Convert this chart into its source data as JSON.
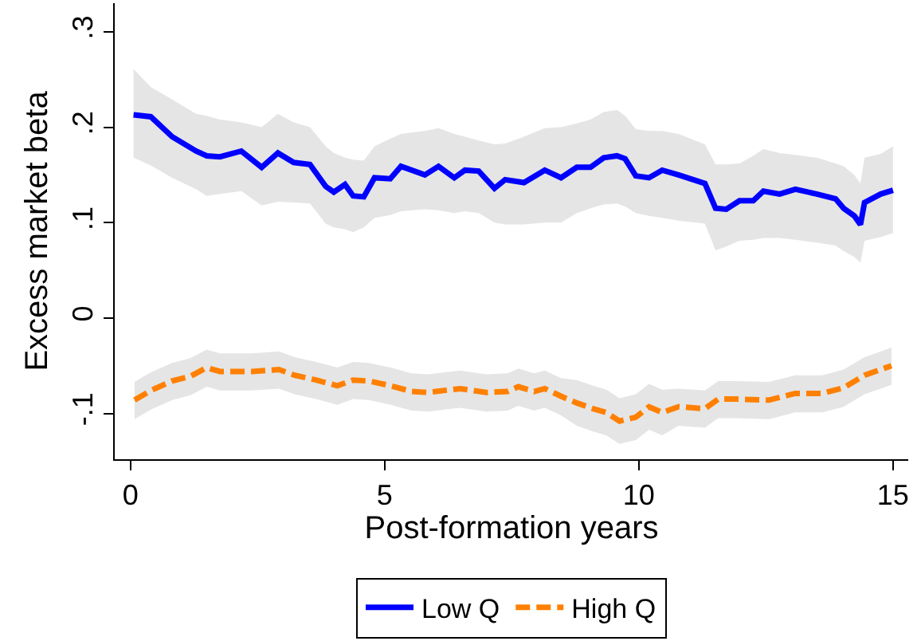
{
  "chart_data": {
    "type": "line",
    "xlabel": "Post-formation years",
    "ylabel": "Excess market beta",
    "xlim": [
      -0.31,
      15.3
    ],
    "xticks": [
      0,
      5,
      10,
      15
    ],
    "ylim": [
      -0.148,
      0.33
    ],
    "yticks": [
      {
        "value": 0.3,
        "label": ".3"
      },
      {
        "value": 0.2,
        "label": ".2"
      },
      {
        "value": 0.1,
        "label": ".1"
      },
      0,
      {
        "value": -0.1,
        "label": "-.1"
      }
    ],
    "grid": false,
    "legend": "bottom",
    "marker": "none",
    "series": [
      {
        "name": "Low Q",
        "color": "#0000ff",
        "line_style": "solid",
        "x": [
          0.06,
          0.4,
          0.82,
          1.29,
          1.5,
          1.76,
          2.18,
          2.58,
          2.9,
          3.21,
          3.53,
          3.84,
          4.0,
          4.22,
          4.38,
          4.59,
          4.8,
          5.11,
          5.32,
          5.79,
          6.06,
          6.37,
          6.58,
          6.85,
          7.16,
          7.37,
          7.74,
          8.15,
          8.47,
          8.78,
          9.05,
          9.31,
          9.57,
          9.73,
          9.94,
          10.2,
          10.46,
          10.78,
          11.3,
          11.51,
          11.72,
          11.98,
          12.25,
          12.45,
          12.77,
          13.08,
          13.5,
          13.87,
          14.03,
          14.24,
          14.36,
          14.44,
          14.76,
          15.0
        ],
        "values": [
          0.213,
          0.211,
          0.19,
          0.175,
          0.17,
          0.169,
          0.175,
          0.158,
          0.173,
          0.163,
          0.161,
          0.138,
          0.132,
          0.14,
          0.128,
          0.127,
          0.147,
          0.146,
          0.159,
          0.15,
          0.159,
          0.147,
          0.155,
          0.154,
          0.136,
          0.145,
          0.142,
          0.155,
          0.147,
          0.158,
          0.158,
          0.168,
          0.17,
          0.167,
          0.149,
          0.147,
          0.155,
          0.15,
          0.141,
          0.115,
          0.114,
          0.123,
          0.123,
          0.133,
          0.13,
          0.135,
          0.13,
          0.125,
          0.115,
          0.107,
          0.098,
          0.121,
          0.13,
          0.134
        ],
        "upper": [
          0.261,
          0.242,
          0.229,
          0.214,
          0.212,
          0.208,
          0.205,
          0.2,
          0.214,
          0.205,
          0.2,
          0.18,
          0.173,
          0.168,
          0.166,
          0.165,
          0.18,
          0.188,
          0.193,
          0.196,
          0.199,
          0.193,
          0.19,
          0.186,
          0.182,
          0.183,
          0.19,
          0.199,
          0.2,
          0.204,
          0.208,
          0.216,
          0.218,
          0.212,
          0.198,
          0.196,
          0.196,
          0.193,
          0.182,
          0.161,
          0.161,
          0.162,
          0.17,
          0.177,
          0.173,
          0.171,
          0.168,
          0.162,
          0.159,
          0.15,
          0.141,
          0.168,
          0.172,
          0.18
        ],
        "lower": [
          0.168,
          0.16,
          0.147,
          0.135,
          0.128,
          0.13,
          0.133,
          0.118,
          0.122,
          0.121,
          0.12,
          0.099,
          0.095,
          0.093,
          0.09,
          0.095,
          0.105,
          0.108,
          0.112,
          0.114,
          0.113,
          0.11,
          0.112,
          0.11,
          0.1,
          0.098,
          0.098,
          0.1,
          0.1,
          0.11,
          0.115,
          0.119,
          0.12,
          0.117,
          0.11,
          0.107,
          0.105,
          0.102,
          0.099,
          0.071,
          0.075,
          0.081,
          0.082,
          0.084,
          0.084,
          0.082,
          0.079,
          0.076,
          0.07,
          0.064,
          0.058,
          0.081,
          0.085,
          0.089
        ]
      },
      {
        "name": "High Q",
        "color": "#ff8000",
        "line_style": "dashed",
        "x": [
          0.08,
          0.4,
          0.82,
          1.18,
          1.5,
          1.76,
          2.08,
          2.39,
          2.92,
          3.23,
          3.65,
          4.07,
          4.38,
          4.69,
          5.12,
          5.53,
          5.85,
          6.48,
          7.0,
          7.42,
          7.63,
          7.94,
          8.15,
          8.47,
          8.78,
          9.1,
          9.36,
          9.62,
          9.94,
          10.2,
          10.46,
          10.78,
          11.3,
          11.56,
          11.93,
          12.56,
          13.08,
          13.61,
          14.03,
          14.44,
          14.97
        ],
        "values": [
          -0.086,
          -0.076,
          -0.066,
          -0.061,
          -0.052,
          -0.056,
          -0.056,
          -0.056,
          -0.054,
          -0.06,
          -0.065,
          -0.071,
          -0.065,
          -0.066,
          -0.071,
          -0.077,
          -0.078,
          -0.074,
          -0.078,
          -0.077,
          -0.072,
          -0.077,
          -0.074,
          -0.082,
          -0.089,
          -0.095,
          -0.099,
          -0.108,
          -0.104,
          -0.093,
          -0.099,
          -0.093,
          -0.095,
          -0.085,
          -0.085,
          -0.086,
          -0.079,
          -0.079,
          -0.073,
          -0.06,
          -0.05
        ],
        "upper": [
          -0.067,
          -0.057,
          -0.047,
          -0.042,
          -0.033,
          -0.037,
          -0.037,
          -0.037,
          -0.035,
          -0.041,
          -0.046,
          -0.052,
          -0.046,
          -0.047,
          -0.052,
          -0.058,
          -0.059,
          -0.055,
          -0.059,
          -0.058,
          -0.053,
          -0.058,
          -0.055,
          -0.063,
          -0.065,
          -0.071,
          -0.075,
          -0.084,
          -0.08,
          -0.069,
          -0.075,
          -0.074,
          -0.076,
          -0.066,
          -0.066,
          -0.067,
          -0.06,
          -0.06,
          -0.054,
          -0.041,
          -0.031
        ],
        "lower": [
          -0.106,
          -0.096,
          -0.086,
          -0.081,
          -0.072,
          -0.076,
          -0.076,
          -0.076,
          -0.074,
          -0.08,
          -0.085,
          -0.091,
          -0.085,
          -0.086,
          -0.091,
          -0.097,
          -0.098,
          -0.094,
          -0.098,
          -0.097,
          -0.092,
          -0.097,
          -0.094,
          -0.102,
          -0.113,
          -0.119,
          -0.123,
          -0.132,
          -0.128,
          -0.117,
          -0.123,
          -0.113,
          -0.115,
          -0.105,
          -0.105,
          -0.106,
          -0.099,
          -0.099,
          -0.093,
          -0.08,
          -0.07
        ]
      }
    ]
  }
}
